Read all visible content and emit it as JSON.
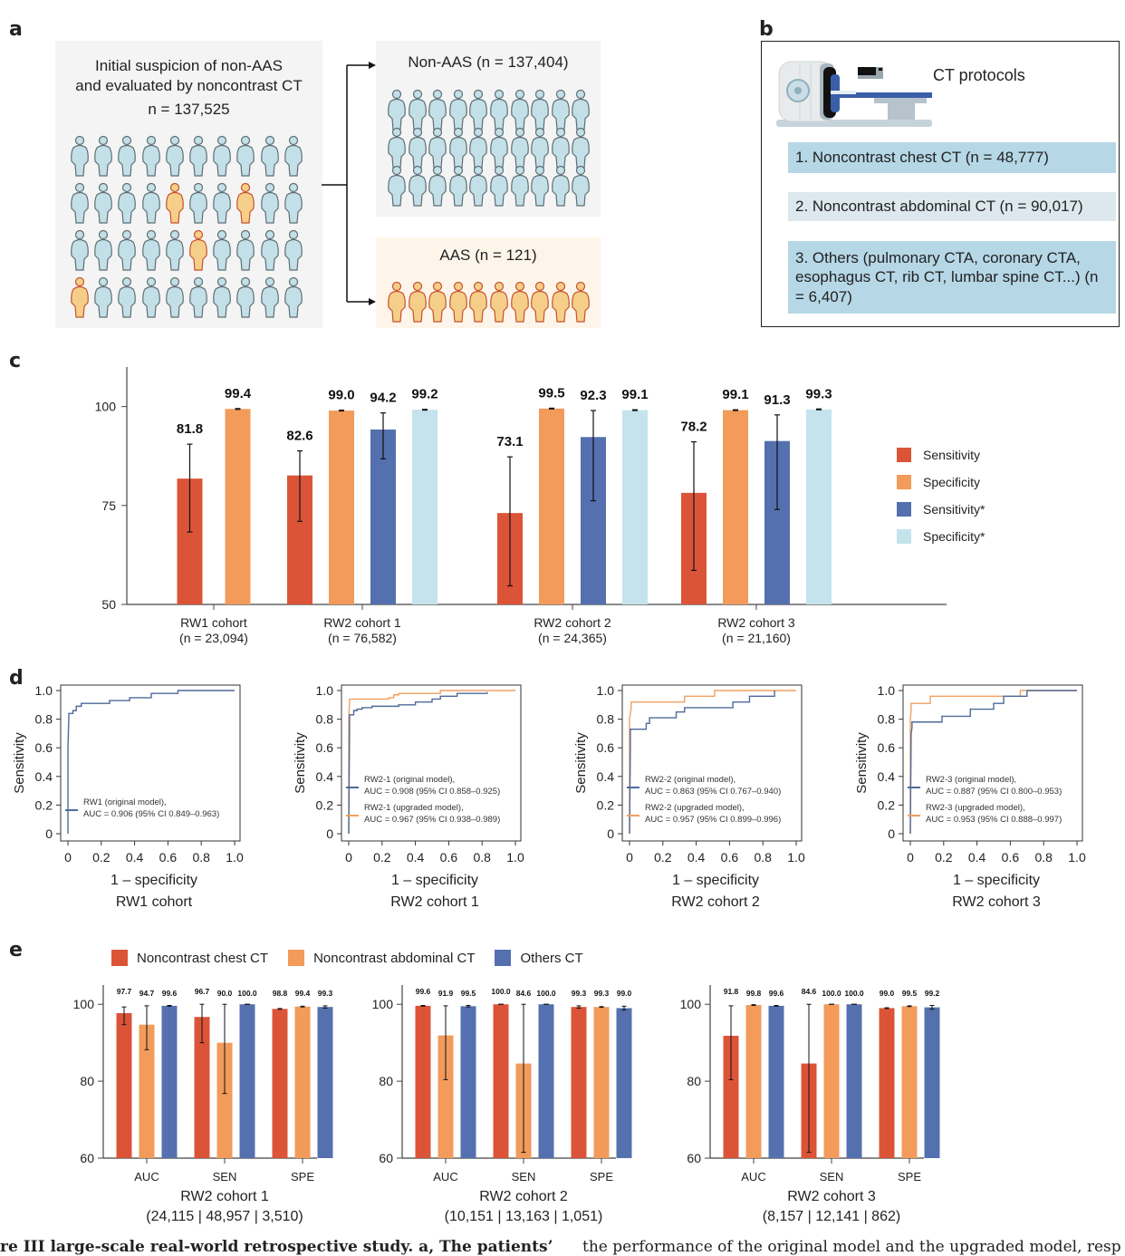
{
  "panel_letters": {
    "a": "a",
    "b": "b",
    "c": "c",
    "d": "d",
    "e": "e"
  },
  "panel_a": {
    "initial_line1": "Initial suspicion of non-AAS",
    "initial_line2": "and evaluated by noncontrast CT",
    "initial_n": "n = 137,525",
    "non_aas_label": "Non-AAS (n = 137,404)",
    "aas_label": "AAS (n = 121)",
    "highlighted_people": [
      [
        1,
        4
      ],
      [
        1,
        7
      ],
      [
        2,
        5
      ],
      [
        3,
        0
      ]
    ],
    "colors": {
      "normal_fill": "#c3dfe7",
      "normal_stroke": "#5e6e72",
      "aas_fill": "#f5cf8a",
      "aas_stroke": "#c8502a"
    }
  },
  "panel_b": {
    "title": "CT protocols",
    "items": [
      {
        "text": "1. Noncontrast chest CT (n = 48,777)",
        "color": "#b6d7e6"
      },
      {
        "text": "2. Noncontrast abdominal CT (n = 90,017)",
        "color": "#dde8ee"
      },
      {
        "text": "3. Others (pulmonary CTA, coronary CTA, esophagus CT, rib CT, lumbar spine CT...) (n = 6,407)",
        "color": "#b6d7e6"
      }
    ]
  },
  "chart_data": [
    {
      "id": "c",
      "type": "bar",
      "title": "",
      "xlabel": "",
      "ylabel": "",
      "ylim": [
        50,
        110
      ],
      "yticks": [
        50,
        75,
        100
      ],
      "categories": [
        "RW1 cohort\n(n = 23,094)",
        "RW2 cohort 1\n(n = 76,582)",
        "RW2 cohort 2\n(n = 24,365)",
        "RW2 cohort 3\n(n = 21,160)"
      ],
      "legend_position": "right",
      "series": [
        {
          "name": "Sensitivity",
          "color": "#dc5438",
          "values": [
            81.8,
            82.6,
            73.1,
            78.2
          ],
          "ci_low": [
            68.3,
            71.0,
            54.7,
            58.6
          ],
          "ci_high": [
            90.5,
            88.8,
            87.3,
            91.1
          ]
        },
        {
          "name": "Specificity",
          "color": "#f29b5b",
          "values": [
            99.4,
            99.0,
            99.5,
            99.1
          ],
          "ci_low": [
            99.3,
            98.9,
            99.4,
            99.0
          ],
          "ci_high": [
            99.5,
            99.1,
            99.6,
            99.2
          ]
        },
        {
          "name": "Sensitivity*",
          "color": "#5470ae",
          "values": [
            null,
            94.2,
            92.3,
            91.3
          ],
          "ci_low": [
            null,
            86.8,
            76.2,
            74.0
          ],
          "ci_high": [
            null,
            98.4,
            99.0,
            97.9
          ]
        },
        {
          "name": "Specificity*",
          "color": "#c4e3ed",
          "values": [
            null,
            99.2,
            99.1,
            99.3
          ],
          "ci_low": [
            null,
            99.1,
            99.0,
            99.2
          ],
          "ci_high": [
            null,
            99.3,
            99.2,
            99.4
          ]
        }
      ]
    },
    {
      "id": "d1",
      "type": "line",
      "title": "RW1 cohort",
      "xlabel": "1 – specificity",
      "ylabel": "Sensitivity",
      "xlim": [
        0,
        1
      ],
      "ylim": [
        0,
        1
      ],
      "xticks": [
        "0",
        "0.2",
        "0.4",
        "0.6",
        "0.8",
        "1.0"
      ],
      "yticks": [
        "0",
        "0.2",
        "0.4",
        "0.6",
        "0.8",
        "1.0"
      ],
      "legend_position": "bottom-right",
      "series": [
        {
          "name": "RW1 (original model),",
          "label2": "AUC = 0.906 (95% CI 0.849–0.963)",
          "color": "#4f6a9a",
          "x": [
            0,
            0,
            0.005,
            0.005,
            0.03,
            0.03,
            0.05,
            0.05,
            0.08,
            0.08,
            0.25,
            0.25,
            0.37,
            0.37,
            0.5,
            0.5,
            0.66,
            0.66,
            1.0
          ],
          "y": [
            0,
            0.6,
            0.8,
            0.84,
            0.84,
            0.86,
            0.86,
            0.89,
            0.89,
            0.91,
            0.91,
            0.93,
            0.93,
            0.95,
            0.95,
            0.98,
            0.98,
            1.0,
            1.0
          ]
        }
      ]
    },
    {
      "id": "d2",
      "type": "line",
      "title": "RW2 cohort 1",
      "xlabel": "1 – specificity",
      "ylabel": "Sensitivity",
      "xlim": [
        0,
        1
      ],
      "ylim": [
        0,
        1
      ],
      "xticks": [
        "0",
        "0.2",
        "0.4",
        "0.6",
        "0.8",
        "1.0"
      ],
      "yticks": [
        "0",
        "0.2",
        "0.4",
        "0.6",
        "0.8",
        "1.0"
      ],
      "legend_position": "bottom-right",
      "series": [
        {
          "name": "RW2-1 (original model),",
          "label2": "AUC = 0.908 (95% CI 0.858–0.925)",
          "color": "#4f6a9a",
          "x": [
            0,
            0.005,
            0.005,
            0.03,
            0.03,
            0.05,
            0.05,
            0.08,
            0.08,
            0.14,
            0.14,
            0.3,
            0.3,
            0.4,
            0.4,
            0.5,
            0.5,
            0.55,
            0.55,
            0.65,
            0.65,
            0.83,
            0.83
          ],
          "y": [
            0,
            0.75,
            0.83,
            0.83,
            0.86,
            0.86,
            0.87,
            0.87,
            0.88,
            0.88,
            0.89,
            0.89,
            0.9,
            0.9,
            0.92,
            0.92,
            0.94,
            0.94,
            0.96,
            0.96,
            0.98,
            0.98,
            0.99
          ]
        },
        {
          "name": "RW2-1 (upgraded model),",
          "label2": "AUC = 0.967 (95% CI 0.938–0.989)",
          "color": "#f0a060",
          "x": [
            0,
            0,
            0.005,
            0.005,
            0.24,
            0.24,
            0.27,
            0.27,
            0.3,
            0.3,
            0.55,
            0.55,
            1.0
          ],
          "y": [
            0,
            0.8,
            0.93,
            0.94,
            0.94,
            0.95,
            0.95,
            0.97,
            0.97,
            0.98,
            0.98,
            1.0,
            1.0
          ]
        }
      ]
    },
    {
      "id": "d3",
      "type": "line",
      "title": "RW2 cohort 2",
      "xlabel": "1 – specificity",
      "ylabel": "Sensitivity",
      "xlim": [
        0,
        1
      ],
      "ylim": [
        0,
        1
      ],
      "xticks": [
        "0",
        "0.2",
        "0.4",
        "0.6",
        "0.8",
        "1.0"
      ],
      "yticks": [
        "0",
        "0.2",
        "0.4",
        "0.6",
        "0.8",
        "1.0"
      ],
      "legend_position": "bottom-right",
      "series": [
        {
          "name": "RW2-2 (original model),",
          "label2": "AUC = 0.863 (95% CI 0.767–0.940)",
          "color": "#4f6a9a",
          "x": [
            0,
            0.005,
            0.005,
            0.1,
            0.1,
            0.12,
            0.12,
            0.28,
            0.28,
            0.33,
            0.33,
            0.62,
            0.62,
            0.72,
            0.72,
            0.87,
            0.87
          ],
          "y": [
            0,
            0.6,
            0.73,
            0.73,
            0.77,
            0.77,
            0.81,
            0.81,
            0.85,
            0.85,
            0.88,
            0.88,
            0.92,
            0.92,
            0.96,
            0.96,
            1.0
          ]
        },
        {
          "name": "RW2-2 (upgraded model),",
          "label2": "AUC = 0.957 (95% CI 0.899–0.996)",
          "color": "#f0a060",
          "x": [
            0,
            0,
            0.01,
            0.01,
            0.33,
            0.33,
            0.51,
            0.51,
            1.0
          ],
          "y": [
            0,
            0.8,
            0.88,
            0.92,
            0.92,
            0.96,
            0.96,
            1.0,
            1.0
          ]
        }
      ]
    },
    {
      "id": "d4",
      "type": "line",
      "title": "RW2 cohort 3",
      "xlabel": "1 – specificity",
      "ylabel": "Sensitivity",
      "xlim": [
        0,
        1
      ],
      "ylim": [
        0,
        1
      ],
      "xticks": [
        "0",
        "0.2",
        "0.4",
        "0.6",
        "0.8",
        "1.0"
      ],
      "yticks": [
        "0",
        "0.2",
        "0.4",
        "0.6",
        "0.8",
        "1.0"
      ],
      "legend_position": "bottom-right",
      "series": [
        {
          "name": "RW2-3 (original model),",
          "label2": "AUC = 0.887 (95% CI 0.800–0.953)",
          "color": "#4f6a9a",
          "x": [
            0,
            0.005,
            0.01,
            0.01,
            0.19,
            0.19,
            0.36,
            0.36,
            0.5,
            0.5,
            0.56,
            0.56,
            0.7,
            0.7,
            1.0
          ],
          "y": [
            0,
            0.7,
            0.74,
            0.78,
            0.78,
            0.82,
            0.82,
            0.87,
            0.87,
            0.91,
            0.91,
            0.96,
            0.96,
            1.0,
            1.0
          ]
        },
        {
          "name": "RW2-3 (upgraded model),",
          "label2": "AUC = 0.953 (95% CI 0.888–0.997)",
          "color": "#f0a060",
          "x": [
            0,
            0,
            0.005,
            0.005,
            0.12,
            0.12,
            0.66,
            0.66,
            1.0
          ],
          "y": [
            0,
            0.8,
            0.87,
            0.91,
            0.91,
            0.96,
            0.96,
            1.0,
            1.0
          ]
        }
      ]
    },
    {
      "id": "e1",
      "type": "bar",
      "title": "RW2 cohort 1",
      "subtitle": "(24,115 | 48,957 | 3,510)",
      "ylim": [
        60,
        105
      ],
      "yticks": [
        60,
        80,
        100
      ],
      "categories": [
        "AUC",
        "SEN",
        "SPE"
      ],
      "series": [
        {
          "name": "Noncontrast chest CT",
          "color": "#dc5438",
          "values": [
            97.7,
            96.7,
            98.8
          ],
          "ci_low": [
            94.7,
            90.0,
            98.7
          ],
          "ci_high": [
            99.3,
            100.0,
            98.9
          ]
        },
        {
          "name": "Noncontrast abdominal CT",
          "color": "#f29b5b",
          "values": [
            94.7,
            90.0,
            99.4
          ],
          "ci_low": [
            88.2,
            76.8,
            99.3
          ],
          "ci_high": [
            99.6,
            100.0,
            99.5
          ]
        },
        {
          "name": "Others CT",
          "color": "#5470ae",
          "values": [
            99.6,
            100.0,
            99.3
          ],
          "ci_low": [
            99.5,
            100.0,
            99.0
          ],
          "ci_high": [
            99.7,
            100.0,
            99.6
          ]
        }
      ]
    },
    {
      "id": "e2",
      "type": "bar",
      "title": "RW2 cohort 2",
      "subtitle": "(10,151 | 13,163 | 1,051)",
      "ylim": [
        60,
        105
      ],
      "yticks": [
        60,
        80,
        100
      ],
      "categories": [
        "AUC",
        "SEN",
        "SPE"
      ],
      "series": [
        {
          "name": "Noncontrast chest CT",
          "color": "#dc5438",
          "values": [
            99.6,
            100.0,
            99.3
          ],
          "ci_low": [
            99.5,
            100.0,
            99.0
          ],
          "ci_high": [
            99.7,
            100.0,
            99.6
          ]
        },
        {
          "name": "Noncontrast abdominal CT",
          "color": "#f29b5b",
          "values": [
            91.9,
            84.6,
            99.3
          ],
          "ci_low": [
            80.4,
            61.5,
            99.2
          ],
          "ci_high": [
            99.6,
            100.0,
            99.4
          ]
        },
        {
          "name": "Others CT",
          "color": "#5470ae",
          "values": [
            99.5,
            100.0,
            99.0
          ],
          "ci_low": [
            99.3,
            100.0,
            98.5
          ],
          "ci_high": [
            99.7,
            100.0,
            99.5
          ]
        }
      ]
    },
    {
      "id": "e3",
      "type": "bar",
      "title": "RW2 cohort 3",
      "subtitle": "(8,157 | 12,141 | 862)",
      "ylim": [
        60,
        105
      ],
      "yticks": [
        60,
        80,
        100
      ],
      "categories": [
        "AUC",
        "SEN",
        "SPE"
      ],
      "series": [
        {
          "name": "Noncontrast chest CT",
          "color": "#dc5438",
          "values": [
            91.8,
            84.6,
            99.0
          ],
          "ci_low": [
            80.4,
            61.5,
            98.9
          ],
          "ci_high": [
            99.6,
            100.0,
            99.1
          ]
        },
        {
          "name": "Noncontrast abdominal CT",
          "color": "#f29b5b",
          "values": [
            99.8,
            100.0,
            99.5
          ],
          "ci_low": [
            99.7,
            100.0,
            99.4
          ],
          "ci_high": [
            99.9,
            100.0,
            99.6
          ]
        },
        {
          "name": "Others CT",
          "color": "#5470ae",
          "values": [
            99.6,
            100.0,
            99.2
          ],
          "ci_low": [
            99.5,
            100.0,
            98.7
          ],
          "ci_high": [
            99.7,
            100.0,
            99.7
          ]
        }
      ]
    }
  ],
  "panel_e_legend": [
    {
      "label": "Noncontrast chest CT",
      "color": "#dc5438"
    },
    {
      "label": "Noncontrast abdominal CT",
      "color": "#f29b5b"
    },
    {
      "label": "Others CT",
      "color": "#5470ae"
    }
  ],
  "caption": {
    "left": "re III large-scale real-world retrospective study. a, The patients’",
    "right": "the performance of the original model and the upgraded model, resp"
  }
}
